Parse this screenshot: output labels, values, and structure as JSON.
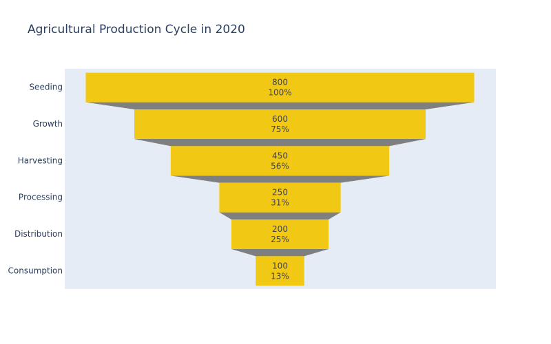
{
  "chart_data": {
    "type": "funnel",
    "title": "Agricultural Production Cycle in 2020",
    "categories": [
      "Seeding",
      "Growth",
      "Harvesting",
      "Processing",
      "Distribution",
      "Consumption"
    ],
    "values": [
      800,
      600,
      450,
      250,
      200,
      100
    ],
    "percent_labels": [
      "100%",
      "75%",
      "56%",
      "31%",
      "25%",
      "13%"
    ],
    "colors": {
      "bar": "#f1c914",
      "connector": "#7f7f7f",
      "plot_background": "#e5ecf6",
      "text": "#2a3f5f"
    },
    "legend": "none"
  }
}
